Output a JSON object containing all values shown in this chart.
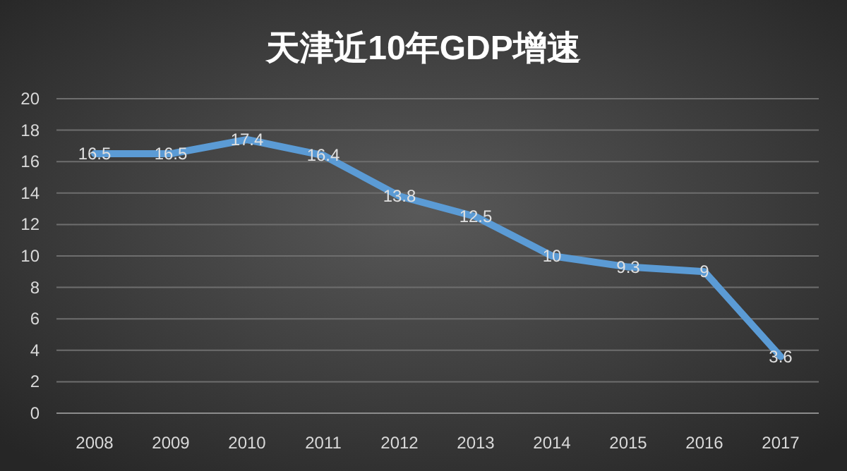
{
  "chart_data": {
    "type": "line",
    "title": "天津近10年GDP增速",
    "categories": [
      "2008",
      "2009",
      "2010",
      "2011",
      "2012",
      "2013",
      "2014",
      "2015",
      "2016",
      "2017"
    ],
    "values": [
      16.5,
      16.5,
      17.4,
      16.4,
      13.8,
      12.5,
      10,
      9.3,
      9,
      3.6
    ],
    "color": "#5b9bd5",
    "ylim": [
      0,
      20
    ],
    "yticks": [
      0,
      2,
      4,
      6,
      8,
      10,
      12,
      14,
      16,
      18,
      20
    ],
    "grid": "y",
    "data_labels": true
  }
}
